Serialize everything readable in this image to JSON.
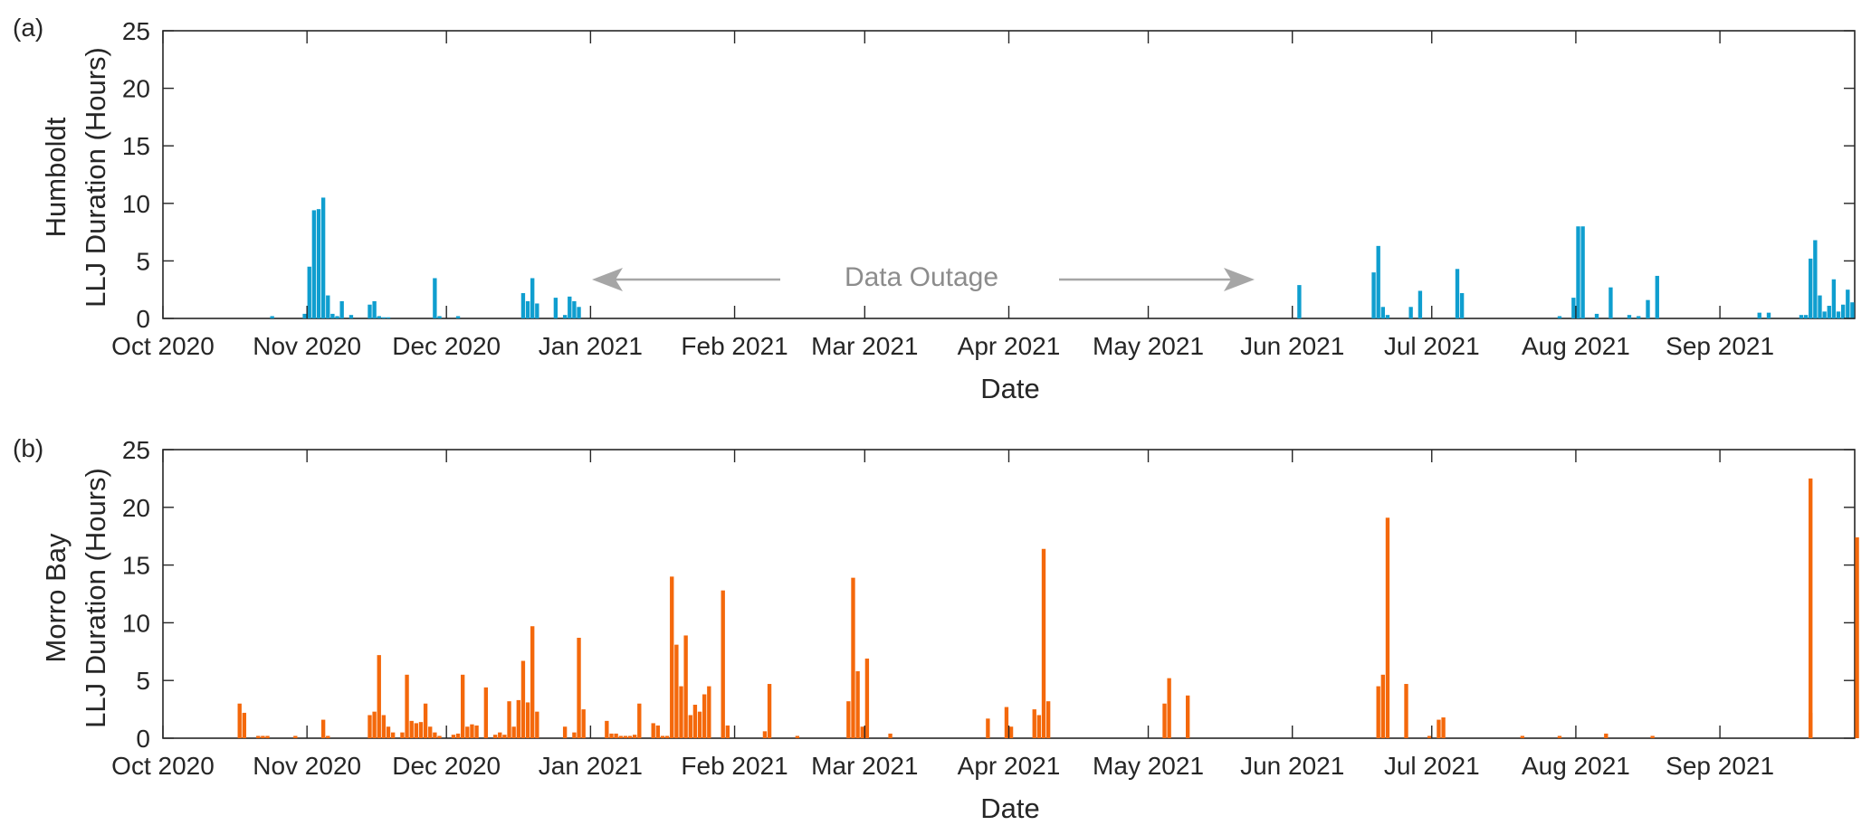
{
  "figure": {
    "panels": [
      {
        "id": "a",
        "panel_label": "(a)",
        "ylabel_line1": "Humboldt",
        "ylabel_line2": "LLJ Duration (Hours)",
        "xlabel": "Date",
        "color": "#0f9ecf"
      },
      {
        "id": "b",
        "panel_label": "(b)",
        "ylabel_line1": "Morro Bay",
        "ylabel_line2": "LLJ Duration (Hours)",
        "xlabel": "Date",
        "color": "#f4680b"
      }
    ],
    "annotation": {
      "text": "Data Outage",
      "from": "2020-12-31",
      "to": "2021-05-24"
    }
  },
  "chart_data": [
    {
      "type": "bar",
      "xlabel": "Date",
      "ylabel": "Humboldt LLJ Duration (Hours)",
      "xlim": [
        "2020-10-01",
        "2021-09-30"
      ],
      "ylim": [
        0,
        25
      ],
      "yticks": [
        0,
        5,
        10,
        15,
        20,
        25
      ],
      "xtick_labels": [
        "Oct 2020",
        "Nov 2020",
        "Dec 2020",
        "Jan 2021",
        "Feb 2021",
        "Mar 2021",
        "Apr 2021",
        "May 2021",
        "Jun 2021",
        "Jul 2021",
        "Aug 2021",
        "Sep 2021"
      ],
      "series": [
        {
          "x": [
            "2020-10-24",
            "2020-10-31",
            "2020-11-01",
            "2020-11-02",
            "2020-11-03",
            "2020-11-04",
            "2020-11-05",
            "2020-11-06",
            "2020-11-07",
            "2020-11-08",
            "2020-11-10",
            "2020-11-14",
            "2020-11-15",
            "2020-11-16",
            "2020-11-17",
            "2020-11-18",
            "2020-11-28",
            "2020-11-29",
            "2020-12-03",
            "2020-12-17",
            "2020-12-18",
            "2020-12-19",
            "2020-12-20",
            "2020-12-24",
            "2020-12-26",
            "2020-12-27",
            "2020-12-28",
            "2020-12-29",
            "2021-06-02",
            "2021-06-18",
            "2021-06-19",
            "2021-06-20",
            "2021-06-21",
            "2021-06-26",
            "2021-06-28",
            "2021-07-06",
            "2021-07-07",
            "2021-07-28",
            "2021-07-31",
            "2021-08-01",
            "2021-08-02",
            "2021-08-05",
            "2021-08-08",
            "2021-08-12",
            "2021-08-14",
            "2021-08-16",
            "2021-08-18",
            "2021-09-09",
            "2021-09-11",
            "2021-09-18",
            "2021-09-19",
            "2021-09-20",
            "2021-09-21",
            "2021-09-22",
            "2021-09-23",
            "2021-09-24",
            "2021-09-25",
            "2021-09-26",
            "2021-09-27",
            "2021-09-28",
            "2021-09-29"
          ],
          "values": [
            0.2,
            0.4,
            4.5,
            9.4,
            9.5,
            10.5,
            2.0,
            0.4,
            0.2,
            1.5,
            0.3,
            1.2,
            1.5,
            0.2,
            0.1,
            0.1,
            3.5,
            0.2,
            0.2,
            2.2,
            1.5,
            3.5,
            1.3,
            1.8,
            0.3,
            1.9,
            1.5,
            1.0,
            2.9,
            4.0,
            6.3,
            1.0,
            0.3,
            1.0,
            2.4,
            4.3,
            2.2,
            0.2,
            1.8,
            8.0,
            8.0,
            0.4,
            2.7,
            0.3,
            0.2,
            1.6,
            3.7,
            0.5,
            0.5,
            0.3,
            0.3,
            5.2,
            6.8,
            2.0,
            0.6,
            1.1,
            3.4,
            0.6,
            1.2,
            2.5,
            1.4
          ]
        }
      ]
    },
    {
      "type": "bar",
      "xlabel": "Date",
      "ylabel": "Morro Bay LLJ Duration (Hours)",
      "xlim": [
        "2020-10-01",
        "2021-09-30"
      ],
      "ylim": [
        0,
        25
      ],
      "yticks": [
        0,
        5,
        10,
        15,
        20,
        25
      ],
      "xtick_labels": [
        "Oct 2020",
        "Nov 2020",
        "Dec 2020",
        "Jan 2021",
        "Feb 2021",
        "Mar 2021",
        "Apr 2021",
        "May 2021",
        "Jun 2021",
        "Jul 2021",
        "Aug 2021",
        "Sep 2021"
      ],
      "series": [
        {
          "x": [
            "2020-10-17",
            "2020-10-18",
            "2020-10-21",
            "2020-10-22",
            "2020-10-23",
            "2020-10-29",
            "2020-11-04",
            "2020-11-05",
            "2020-11-14",
            "2020-11-15",
            "2020-11-16",
            "2020-11-17",
            "2020-11-18",
            "2020-11-19",
            "2020-11-21",
            "2020-11-22",
            "2020-11-23",
            "2020-11-24",
            "2020-11-25",
            "2020-11-26",
            "2020-11-27",
            "2020-11-28",
            "2020-11-29",
            "2020-12-02",
            "2020-12-03",
            "2020-12-04",
            "2020-12-05",
            "2020-12-06",
            "2020-12-07",
            "2020-12-09",
            "2020-12-11",
            "2020-12-12",
            "2020-12-13",
            "2020-12-14",
            "2020-12-15",
            "2020-12-16",
            "2020-12-17",
            "2020-12-18",
            "2020-12-19",
            "2020-12-20",
            "2020-12-26",
            "2020-12-28",
            "2020-12-29",
            "2020-12-30",
            "2021-01-04",
            "2021-01-05",
            "2021-01-06",
            "2021-01-07",
            "2021-01-08",
            "2021-01-09",
            "2021-01-10",
            "2021-01-11",
            "2021-01-14",
            "2021-01-15",
            "2021-01-16",
            "2021-01-17",
            "2021-01-18",
            "2021-01-19",
            "2021-01-20",
            "2021-01-21",
            "2021-01-22",
            "2021-01-23",
            "2021-01-24",
            "2021-01-25",
            "2021-01-26",
            "2021-01-29",
            "2021-01-30",
            "2021-02-07",
            "2021-02-08",
            "2021-02-14",
            "2021-02-25",
            "2021-02-26",
            "2021-02-27",
            "2021-02-28",
            "2021-03-01",
            "2021-03-06",
            "2021-03-27",
            "2021-03-31",
            "2021-04-01",
            "2021-04-06",
            "2021-04-07",
            "2021-04-08",
            "2021-04-09",
            "2021-05-04",
            "2021-05-05",
            "2021-05-09",
            "2021-06-19",
            "2021-06-20",
            "2021-06-21",
            "2021-06-25",
            "2021-06-30",
            "2021-07-02",
            "2021-07-03",
            "2021-07-20",
            "2021-07-28",
            "2021-08-07",
            "2021-08-17",
            "2021-09-20",
            "2021-09-20",
            "2021-09-30"
          ],
          "values": [
            3.0,
            2.2,
            0.2,
            0.2,
            0.2,
            0.2,
            1.6,
            0.2,
            2.0,
            2.3,
            7.2,
            2.0,
            1.0,
            0.5,
            0.5,
            5.5,
            1.5,
            1.3,
            1.4,
            3.0,
            1.0,
            0.5,
            0.2,
            0.3,
            0.4,
            5.5,
            1.0,
            1.2,
            1.1,
            4.4,
            0.3,
            0.5,
            0.3,
            3.2,
            1.0,
            3.3,
            6.7,
            3.1,
            9.7,
            2.3,
            1.0,
            0.5,
            8.7,
            2.5,
            1.5,
            0.4,
            0.4,
            0.2,
            0.2,
            0.2,
            0.3,
            3.0,
            1.3,
            1.1,
            0.2,
            0.2,
            14.0,
            8.1,
            4.5,
            8.9,
            2.0,
            2.9,
            2.3,
            3.8,
            4.5,
            12.8,
            1.1,
            0.6,
            4.7,
            0.2,
            3.2,
            13.9,
            5.8,
            1.0,
            6.9,
            0.4,
            1.7,
            2.7,
            1.0,
            2.5,
            2.0,
            16.4,
            3.2,
            3.0,
            5.2,
            3.7,
            4.5,
            5.5,
            19.1,
            4.7,
            0.2,
            1.6,
            1.8,
            0.2,
            0.2,
            0.4,
            0.2,
            2.2,
            22.5,
            17.4
          ]
        }
      ]
    }
  ]
}
